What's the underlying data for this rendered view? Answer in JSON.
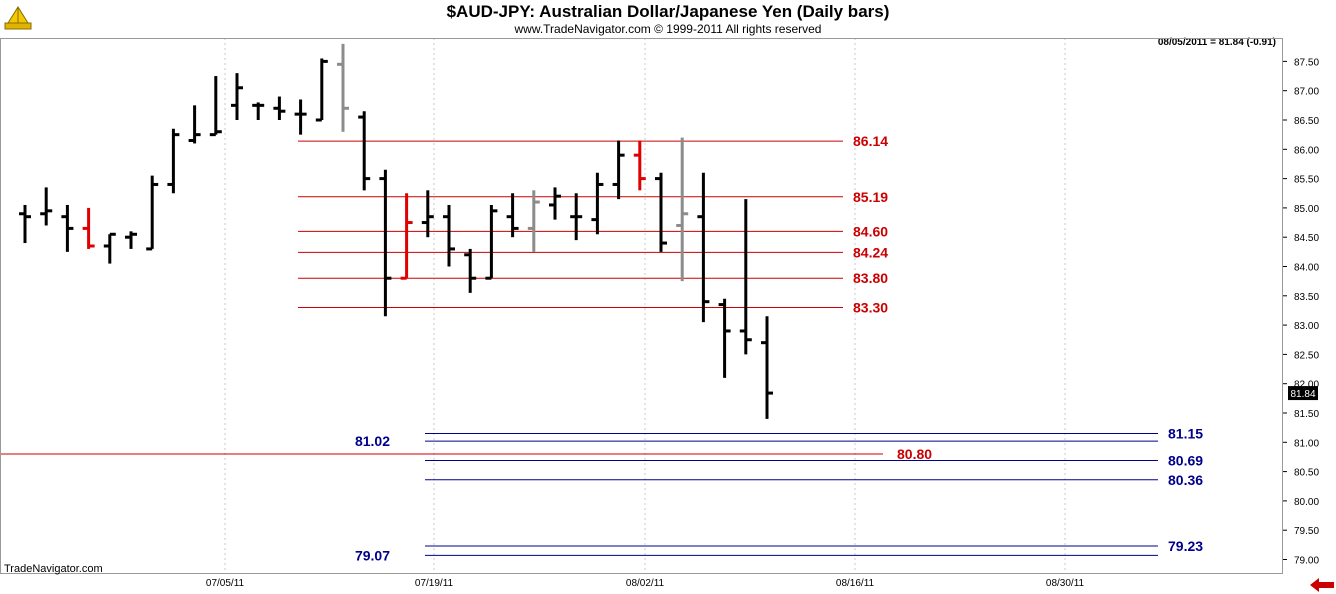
{
  "header": {
    "title": "$AUD-JPY:  Australian Dollar/Japanese Yen  (Daily bars)",
    "subtitle": "www.TradeNavigator.com © 1999-2011 All rights reserved"
  },
  "readout": "08/05/2011 = 81.84 (-0.91)",
  "watermark": "TradeNavigator.com",
  "colors": {
    "bar_default": "#000000",
    "bar_gray": "#8c8c8c",
    "bar_red": "#e00000",
    "fib_red": "#cc0000",
    "fib_blue": "#00008b",
    "accent_green": "#22aa22"
  },
  "icons": {
    "logo": "trade-navigator-logo-icon",
    "nav": "scroll-left-arrow-icon"
  },
  "chart_data": {
    "type": "ohlc",
    "ylim": [
      78.9,
      87.75
    ],
    "y_ticks": [
      "87.50",
      "87.00",
      "86.50",
      "86.00",
      "85.50",
      "85.00",
      "84.50",
      "84.00",
      "83.50",
      "83.00",
      "82.50",
      "82.00",
      "81.50",
      "81.00",
      "80.50",
      "80.00",
      "79.50",
      "79.00"
    ],
    "x_ticks": [
      "07/05/11",
      "07/19/11",
      "08/02/11",
      "08/16/11",
      "08/30/11"
    ],
    "last_price_label": "81.84",
    "grid": "vertical dotted at date ticks",
    "bars": [
      {
        "o": 84.9,
        "h": 85.05,
        "l": 84.4,
        "c": 84.85,
        "color": "black"
      },
      {
        "o": 84.9,
        "h": 85.35,
        "l": 84.7,
        "c": 84.95,
        "color": "black"
      },
      {
        "o": 84.85,
        "h": 85.05,
        "l": 84.25,
        "c": 84.65,
        "color": "black"
      },
      {
        "o": 84.65,
        "h": 85.0,
        "l": 84.3,
        "c": 84.35,
        "color": "red"
      },
      {
        "o": 84.35,
        "h": 84.55,
        "l": 84.05,
        "c": 84.55,
        "color": "black"
      },
      {
        "o": 84.5,
        "h": 84.6,
        "l": 84.3,
        "c": 84.55,
        "color": "black"
      },
      {
        "o": 84.3,
        "h": 85.55,
        "l": 84.3,
        "c": 85.4,
        "color": "black"
      },
      {
        "o": 85.4,
        "h": 86.35,
        "l": 85.25,
        "c": 86.25,
        "color": "black"
      },
      {
        "o": 86.15,
        "h": 86.75,
        "l": 86.1,
        "c": 86.25,
        "color": "black"
      },
      {
        "o": 86.25,
        "h": 87.25,
        "l": 86.25,
        "c": 86.3,
        "color": "black"
      },
      {
        "o": 86.75,
        "h": 87.3,
        "l": 86.5,
        "c": 87.05,
        "color": "black"
      },
      {
        "o": 86.75,
        "h": 86.8,
        "l": 86.5,
        "c": 86.75,
        "color": "black"
      },
      {
        "o": 86.7,
        "h": 86.9,
        "l": 86.5,
        "c": 86.65,
        "color": "black"
      },
      {
        "o": 86.6,
        "h": 86.85,
        "l": 86.25,
        "c": 86.6,
        "color": "black"
      },
      {
        "o": 86.5,
        "h": 87.55,
        "l": 86.5,
        "c": 87.5,
        "color": "black"
      },
      {
        "o": 87.45,
        "h": 87.8,
        "l": 86.3,
        "c": 86.7,
        "color": "gray"
      },
      {
        "o": 86.55,
        "h": 86.65,
        "l": 85.3,
        "c": 85.5,
        "color": "black"
      },
      {
        "o": 85.5,
        "h": 85.65,
        "l": 83.15,
        "c": 83.8,
        "color": "black"
      },
      {
        "o": 83.8,
        "h": 85.25,
        "l": 83.8,
        "c": 84.75,
        "color": "red"
      },
      {
        "o": 84.75,
        "h": 85.3,
        "l": 84.5,
        "c": 84.85,
        "color": "black"
      },
      {
        "o": 84.85,
        "h": 85.05,
        "l": 84.0,
        "c": 84.3,
        "color": "black"
      },
      {
        "o": 84.2,
        "h": 84.3,
        "l": 83.55,
        "c": 83.8,
        "color": "black"
      },
      {
        "o": 83.8,
        "h": 85.05,
        "l": 83.8,
        "c": 84.95,
        "color": "black"
      },
      {
        "o": 84.85,
        "h": 85.25,
        "l": 84.5,
        "c": 84.65,
        "color": "black"
      },
      {
        "o": 84.65,
        "h": 85.3,
        "l": 84.25,
        "c": 85.1,
        "color": "gray"
      },
      {
        "o": 85.05,
        "h": 85.35,
        "l": 84.8,
        "c": 85.2,
        "color": "black"
      },
      {
        "o": 84.85,
        "h": 85.25,
        "l": 84.45,
        "c": 84.85,
        "color": "black"
      },
      {
        "o": 84.8,
        "h": 85.6,
        "l": 84.55,
        "c": 85.4,
        "color": "black"
      },
      {
        "o": 85.4,
        "h": 86.15,
        "l": 85.15,
        "c": 85.9,
        "color": "black"
      },
      {
        "o": 85.9,
        "h": 86.15,
        "l": 85.3,
        "c": 85.5,
        "color": "red"
      },
      {
        "o": 85.5,
        "h": 85.6,
        "l": 84.25,
        "c": 84.4,
        "color": "black"
      },
      {
        "o": 84.7,
        "h": 86.2,
        "l": 83.75,
        "c": 84.9,
        "color": "gray"
      },
      {
        "o": 84.85,
        "h": 85.6,
        "l": 83.05,
        "c": 83.4,
        "color": "black"
      },
      {
        "o": 83.35,
        "h": 83.45,
        "l": 82.1,
        "c": 82.9,
        "color": "black"
      },
      {
        "o": 82.9,
        "h": 85.15,
        "l": 82.5,
        "c": 82.75,
        "color": "black"
      },
      {
        "o": 82.7,
        "h": 83.15,
        "l": 81.4,
        "c": 81.84,
        "color": "black"
      }
    ],
    "levels": [
      {
        "value": 86.14,
        "label": "86.14",
        "color": "red",
        "side": "upper"
      },
      {
        "value": 85.19,
        "label": "85.19",
        "color": "red",
        "side": "upper"
      },
      {
        "value": 84.6,
        "label": "84.60",
        "color": "red",
        "side": "upper"
      },
      {
        "value": 84.24,
        "label": "84.24",
        "color": "red",
        "side": "upper"
      },
      {
        "value": 83.8,
        "label": "83.80",
        "color": "red",
        "side": "upper"
      },
      {
        "value": 83.3,
        "label": "83.30",
        "color": "red",
        "side": "upper"
      },
      {
        "value": 81.15,
        "label": "81.15",
        "color": "blue",
        "side": "right"
      },
      {
        "value": 81.02,
        "label": "81.02",
        "color": "blue",
        "side": "left"
      },
      {
        "value": 80.8,
        "label": "80.80",
        "color": "red",
        "side": "mid"
      },
      {
        "value": 80.69,
        "label": "80.69",
        "color": "blue",
        "side": "right"
      },
      {
        "value": 80.36,
        "label": "80.36",
        "color": "blue",
        "side": "right"
      },
      {
        "value": 79.23,
        "label": "79.23",
        "color": "blue",
        "side": "right"
      },
      {
        "value": 79.07,
        "label": "79.07",
        "color": "blue",
        "side": "left"
      }
    ]
  }
}
